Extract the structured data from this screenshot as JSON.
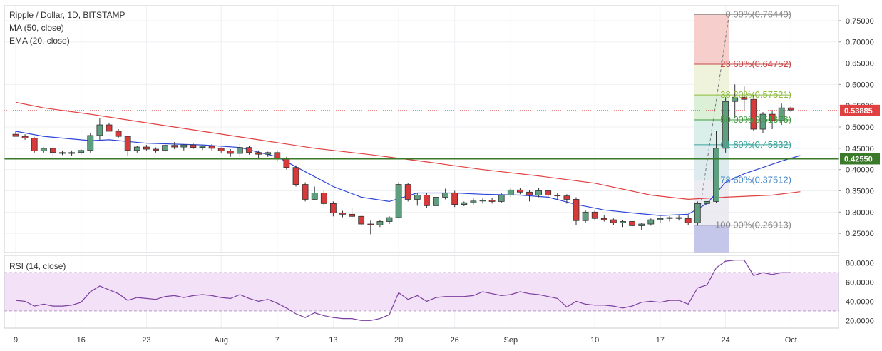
{
  "header": {
    "symbol": "Ripple / Dollar, 1D, BITSTAMP",
    "ma": "MA (50, close)",
    "ema": "EMA (20, close)",
    "rsi": "RSI (14, close)"
  },
  "colors": {
    "up": "#5f9e7e",
    "down": "#d63a3a",
    "ma": "#e04040",
    "ema": "#2d46d8",
    "rsi": "#7b3f9f",
    "support": "#3a7a2a"
  },
  "chart_data": {
    "type": "candlestick",
    "price_axis": {
      "min": 0.205,
      "max": 0.785,
      "ticks": [
        "0.75000",
        "0.70000",
        "0.65000",
        "0.60000",
        "0.55000",
        "0.50000",
        "0.45000",
        "0.40000",
        "0.35000",
        "0.30000",
        "0.25000"
      ]
    },
    "rsi_axis": {
      "min": 12,
      "max": 88,
      "ticks": [
        "80.0000",
        "60.0000",
        "40.0000",
        "20.0000"
      ],
      "upper": 70,
      "lower": 30
    },
    "x_ticks": [
      {
        "label": "9",
        "i": 0
      },
      {
        "label": "16",
        "i": 7
      },
      {
        "label": "23",
        "i": 14
      },
      {
        "label": "Aug",
        "i": 22
      },
      {
        "label": "7",
        "i": 28
      },
      {
        "label": "13",
        "i": 34
      },
      {
        "label": "20",
        "i": 41
      },
      {
        "label": "26",
        "i": 47
      },
      {
        "label": "Sep",
        "i": 53
      },
      {
        "label": "10",
        "i": 62
      },
      {
        "label": "17",
        "i": 69
      },
      {
        "label": "24",
        "i": 76
      },
      {
        "label": "Oct",
        "i": 83
      }
    ],
    "candles": [
      [
        0.483,
        0.49,
        0.478,
        0.478
      ],
      [
        0.478,
        0.483,
        0.47,
        0.474
      ],
      [
        0.474,
        0.476,
        0.44,
        0.444
      ],
      [
        0.444,
        0.452,
        0.44,
        0.45
      ],
      [
        0.45,
        0.452,
        0.43,
        0.44
      ],
      [
        0.44,
        0.445,
        0.434,
        0.438
      ],
      [
        0.438,
        0.445,
        0.432,
        0.44
      ],
      [
        0.44,
        0.448,
        0.436,
        0.445
      ],
      [
        0.445,
        0.485,
        0.44,
        0.48
      ],
      [
        0.48,
        0.52,
        0.47,
        0.505
      ],
      [
        0.505,
        0.51,
        0.49,
        0.49
      ],
      [
        0.49,
        0.495,
        0.475,
        0.478
      ],
      [
        0.478,
        0.48,
        0.432,
        0.445
      ],
      [
        0.445,
        0.455,
        0.44,
        0.453
      ],
      [
        0.453,
        0.458,
        0.445,
        0.448
      ],
      [
        0.448,
        0.452,
        0.44,
        0.445
      ],
      [
        0.445,
        0.46,
        0.44,
        0.457
      ],
      [
        0.457,
        0.465,
        0.448,
        0.453
      ],
      [
        0.453,
        0.46,
        0.445,
        0.458
      ],
      [
        0.458,
        0.462,
        0.448,
        0.452
      ],
      [
        0.452,
        0.458,
        0.446,
        0.455
      ],
      [
        0.455,
        0.46,
        0.445,
        0.45
      ],
      [
        0.45,
        0.452,
        0.44,
        0.444
      ],
      [
        0.444,
        0.448,
        0.43,
        0.438
      ],
      [
        0.438,
        0.46,
        0.43,
        0.452
      ],
      [
        0.452,
        0.456,
        0.435,
        0.44
      ],
      [
        0.44,
        0.445,
        0.428,
        0.436
      ],
      [
        0.436,
        0.442,
        0.43,
        0.44
      ],
      [
        0.44,
        0.445,
        0.42,
        0.425
      ],
      [
        0.425,
        0.43,
        0.4,
        0.405
      ],
      [
        0.405,
        0.41,
        0.36,
        0.365
      ],
      [
        0.365,
        0.37,
        0.325,
        0.33
      ],
      [
        0.33,
        0.36,
        0.328,
        0.345
      ],
      [
        0.345,
        0.35,
        0.315,
        0.32
      ],
      [
        0.32,
        0.325,
        0.29,
        0.298
      ],
      [
        0.298,
        0.303,
        0.288,
        0.295
      ],
      [
        0.295,
        0.31,
        0.285,
        0.29
      ],
      [
        0.29,
        0.292,
        0.27,
        0.272
      ],
      [
        0.272,
        0.28,
        0.248,
        0.27
      ],
      [
        0.27,
        0.282,
        0.265,
        0.278
      ],
      [
        0.278,
        0.29,
        0.272,
        0.287
      ],
      [
        0.287,
        0.37,
        0.285,
        0.365
      ],
      [
        0.365,
        0.368,
        0.325,
        0.33
      ],
      [
        0.33,
        0.345,
        0.315,
        0.34
      ],
      [
        0.34,
        0.345,
        0.31,
        0.315
      ],
      [
        0.315,
        0.34,
        0.31,
        0.335
      ],
      [
        0.335,
        0.355,
        0.33,
        0.345
      ],
      [
        0.345,
        0.35,
        0.312,
        0.318
      ],
      [
        0.318,
        0.325,
        0.314,
        0.322
      ],
      [
        0.322,
        0.332,
        0.318,
        0.326
      ],
      [
        0.326,
        0.332,
        0.32,
        0.328
      ],
      [
        0.328,
        0.333,
        0.32,
        0.325
      ],
      [
        0.325,
        0.345,
        0.322,
        0.34
      ],
      [
        0.34,
        0.357,
        0.335,
        0.352
      ],
      [
        0.352,
        0.356,
        0.342,
        0.347
      ],
      [
        0.347,
        0.352,
        0.325,
        0.34
      ],
      [
        0.34,
        0.356,
        0.335,
        0.35
      ],
      [
        0.35,
        0.352,
        0.335,
        0.34
      ],
      [
        0.34,
        0.345,
        0.33,
        0.338
      ],
      [
        0.338,
        0.342,
        0.32,
        0.33
      ],
      [
        0.33,
        0.335,
        0.27,
        0.28
      ],
      [
        0.28,
        0.305,
        0.275,
        0.3
      ],
      [
        0.3,
        0.305,
        0.28,
        0.285
      ],
      [
        0.285,
        0.292,
        0.278,
        0.282
      ],
      [
        0.282,
        0.285,
        0.27,
        0.275
      ],
      [
        0.275,
        0.282,
        0.265,
        0.278
      ],
      [
        0.278,
        0.282,
        0.265,
        0.268
      ],
      [
        0.268,
        0.275,
        0.258,
        0.272
      ],
      [
        0.272,
        0.285,
        0.268,
        0.282
      ],
      [
        0.282,
        0.29,
        0.275,
        0.285
      ],
      [
        0.285,
        0.29,
        0.278,
        0.287
      ],
      [
        0.287,
        0.292,
        0.28,
        0.285
      ],
      [
        0.285,
        0.292,
        0.27,
        0.275
      ],
      [
        0.275,
        0.325,
        0.268,
        0.32
      ],
      [
        0.32,
        0.33,
        0.315,
        0.325
      ],
      [
        0.325,
        0.49,
        0.322,
        0.45
      ],
      [
        0.45,
        0.57,
        0.44,
        0.56
      ],
      [
        0.56,
        0.6,
        0.52,
        0.57
      ],
      [
        0.57,
        0.595,
        0.54,
        0.565
      ],
      [
        0.565,
        0.575,
        0.49,
        0.495
      ],
      [
        0.495,
        0.535,
        0.485,
        0.53
      ],
      [
        0.53,
        0.54,
        0.495,
        0.515
      ],
      [
        0.515,
        0.555,
        0.505,
        0.545
      ],
      [
        0.545,
        0.55,
        0.535,
        0.54
      ]
    ],
    "ma50": [
      [
        0,
        0.558
      ],
      [
        3,
        0.545
      ],
      [
        8,
        0.53
      ],
      [
        14,
        0.51
      ],
      [
        20,
        0.49
      ],
      [
        26,
        0.47
      ],
      [
        32,
        0.45
      ],
      [
        38,
        0.435
      ],
      [
        44,
        0.418
      ],
      [
        50,
        0.4
      ],
      [
        56,
        0.385
      ],
      [
        62,
        0.368
      ],
      [
        68,
        0.34
      ],
      [
        72,
        0.33
      ],
      [
        76,
        0.335
      ],
      [
        81,
        0.34
      ],
      [
        84,
        0.348
      ]
    ],
    "ema20": [
      [
        0,
        0.49
      ],
      [
        3,
        0.478
      ],
      [
        8,
        0.468
      ],
      [
        10,
        0.47
      ],
      [
        14,
        0.462
      ],
      [
        20,
        0.458
      ],
      [
        24,
        0.452
      ],
      [
        28,
        0.43
      ],
      [
        31,
        0.395
      ],
      [
        34,
        0.36
      ],
      [
        37,
        0.335
      ],
      [
        40,
        0.325
      ],
      [
        43,
        0.345
      ],
      [
        47,
        0.345
      ],
      [
        50,
        0.342
      ],
      [
        54,
        0.34
      ],
      [
        57,
        0.335
      ],
      [
        60,
        0.318
      ],
      [
        63,
        0.305
      ],
      [
        66,
        0.298
      ],
      [
        69,
        0.292
      ],
      [
        72,
        0.295
      ],
      [
        74,
        0.32
      ],
      [
        76,
        0.37
      ],
      [
        78,
        0.39
      ],
      [
        80,
        0.405
      ],
      [
        82,
        0.42
      ],
      [
        84,
        0.433
      ]
    ],
    "rsi": [
      [
        0,
        41
      ],
      [
        1,
        40
      ],
      [
        2,
        35
      ],
      [
        3,
        37
      ],
      [
        4,
        35
      ],
      [
        5,
        35
      ],
      [
        6,
        36
      ],
      [
        7,
        39
      ],
      [
        8,
        50
      ],
      [
        9,
        56
      ],
      [
        10,
        52
      ],
      [
        11,
        48
      ],
      [
        12,
        41
      ],
      [
        13,
        44
      ],
      [
        14,
        43
      ],
      [
        15,
        42
      ],
      [
        16,
        45
      ],
      [
        17,
        46
      ],
      [
        18,
        44
      ],
      [
        19,
        46
      ],
      [
        20,
        47
      ],
      [
        21,
        46
      ],
      [
        22,
        44
      ],
      [
        23,
        43
      ],
      [
        24,
        47
      ],
      [
        25,
        43
      ],
      [
        26,
        40
      ],
      [
        27,
        42
      ],
      [
        28,
        38
      ],
      [
        29,
        33
      ],
      [
        30,
        27
      ],
      [
        31,
        23
      ],
      [
        32,
        28
      ],
      [
        33,
        25
      ],
      [
        34,
        23
      ],
      [
        35,
        22
      ],
      [
        36,
        22
      ],
      [
        37,
        20
      ],
      [
        38,
        20
      ],
      [
        39,
        22
      ],
      [
        40,
        26
      ],
      [
        41,
        49
      ],
      [
        42,
        42
      ],
      [
        43,
        46
      ],
      [
        44,
        40
      ],
      [
        45,
        44
      ],
      [
        46,
        45
      ],
      [
        47,
        45
      ],
      [
        48,
        45
      ],
      [
        49,
        46
      ],
      [
        50,
        50
      ],
      [
        51,
        48
      ],
      [
        52,
        46
      ],
      [
        53,
        47
      ],
      [
        54,
        50
      ],
      [
        55,
        48
      ],
      [
        56,
        47
      ],
      [
        57,
        45
      ],
      [
        58,
        43
      ],
      [
        59,
        34
      ],
      [
        60,
        40
      ],
      [
        61,
        37
      ],
      [
        62,
        36
      ],
      [
        63,
        36
      ],
      [
        64,
        35
      ],
      [
        65,
        33
      ],
      [
        66,
        35
      ],
      [
        67,
        39
      ],
      [
        68,
        40
      ],
      [
        69,
        39
      ],
      [
        70,
        41
      ],
      [
        71,
        41
      ],
      [
        72,
        37
      ],
      [
        73,
        54
      ],
      [
        74,
        57
      ],
      [
        75,
        75
      ],
      [
        76,
        82
      ],
      [
        77,
        83
      ],
      [
        78,
        83
      ],
      [
        79,
        67
      ],
      [
        80,
        70
      ],
      [
        81,
        68
      ],
      [
        82,
        70
      ],
      [
        83,
        70
      ]
    ],
    "fib": [
      {
        "label": "0.00%(0.76440)",
        "value": 0.7644,
        "color": "#888888"
      },
      {
        "label": "23.60%(0.64752)",
        "value": 0.64752,
        "color": "#c84848"
      },
      {
        "label": "38.20%(0.57521)",
        "value": 0.57521,
        "color": "#8cbc3c"
      },
      {
        "label": "50.00%(0.51676)",
        "value": 0.51676,
        "color": "#3c9c3c"
      },
      {
        "label": "61.80%(0.45832)",
        "value": 0.45832,
        "color": "#3aa39b"
      },
      {
        "label": "78.60%(0.37512)",
        "value": 0.37512,
        "color": "#4a8ac8"
      },
      {
        "label": "100.00%(0.26913)",
        "value": 0.26913,
        "color": "#888888"
      }
    ],
    "fib_range": {
      "i0": 73,
      "i1": 76
    },
    "current_price": {
      "label": "0.53885",
      "value": 0.53885,
      "color": "#e04040"
    },
    "support": {
      "label": "0.42550",
      "value": 0.4255,
      "color": "#3a7a2a"
    }
  }
}
